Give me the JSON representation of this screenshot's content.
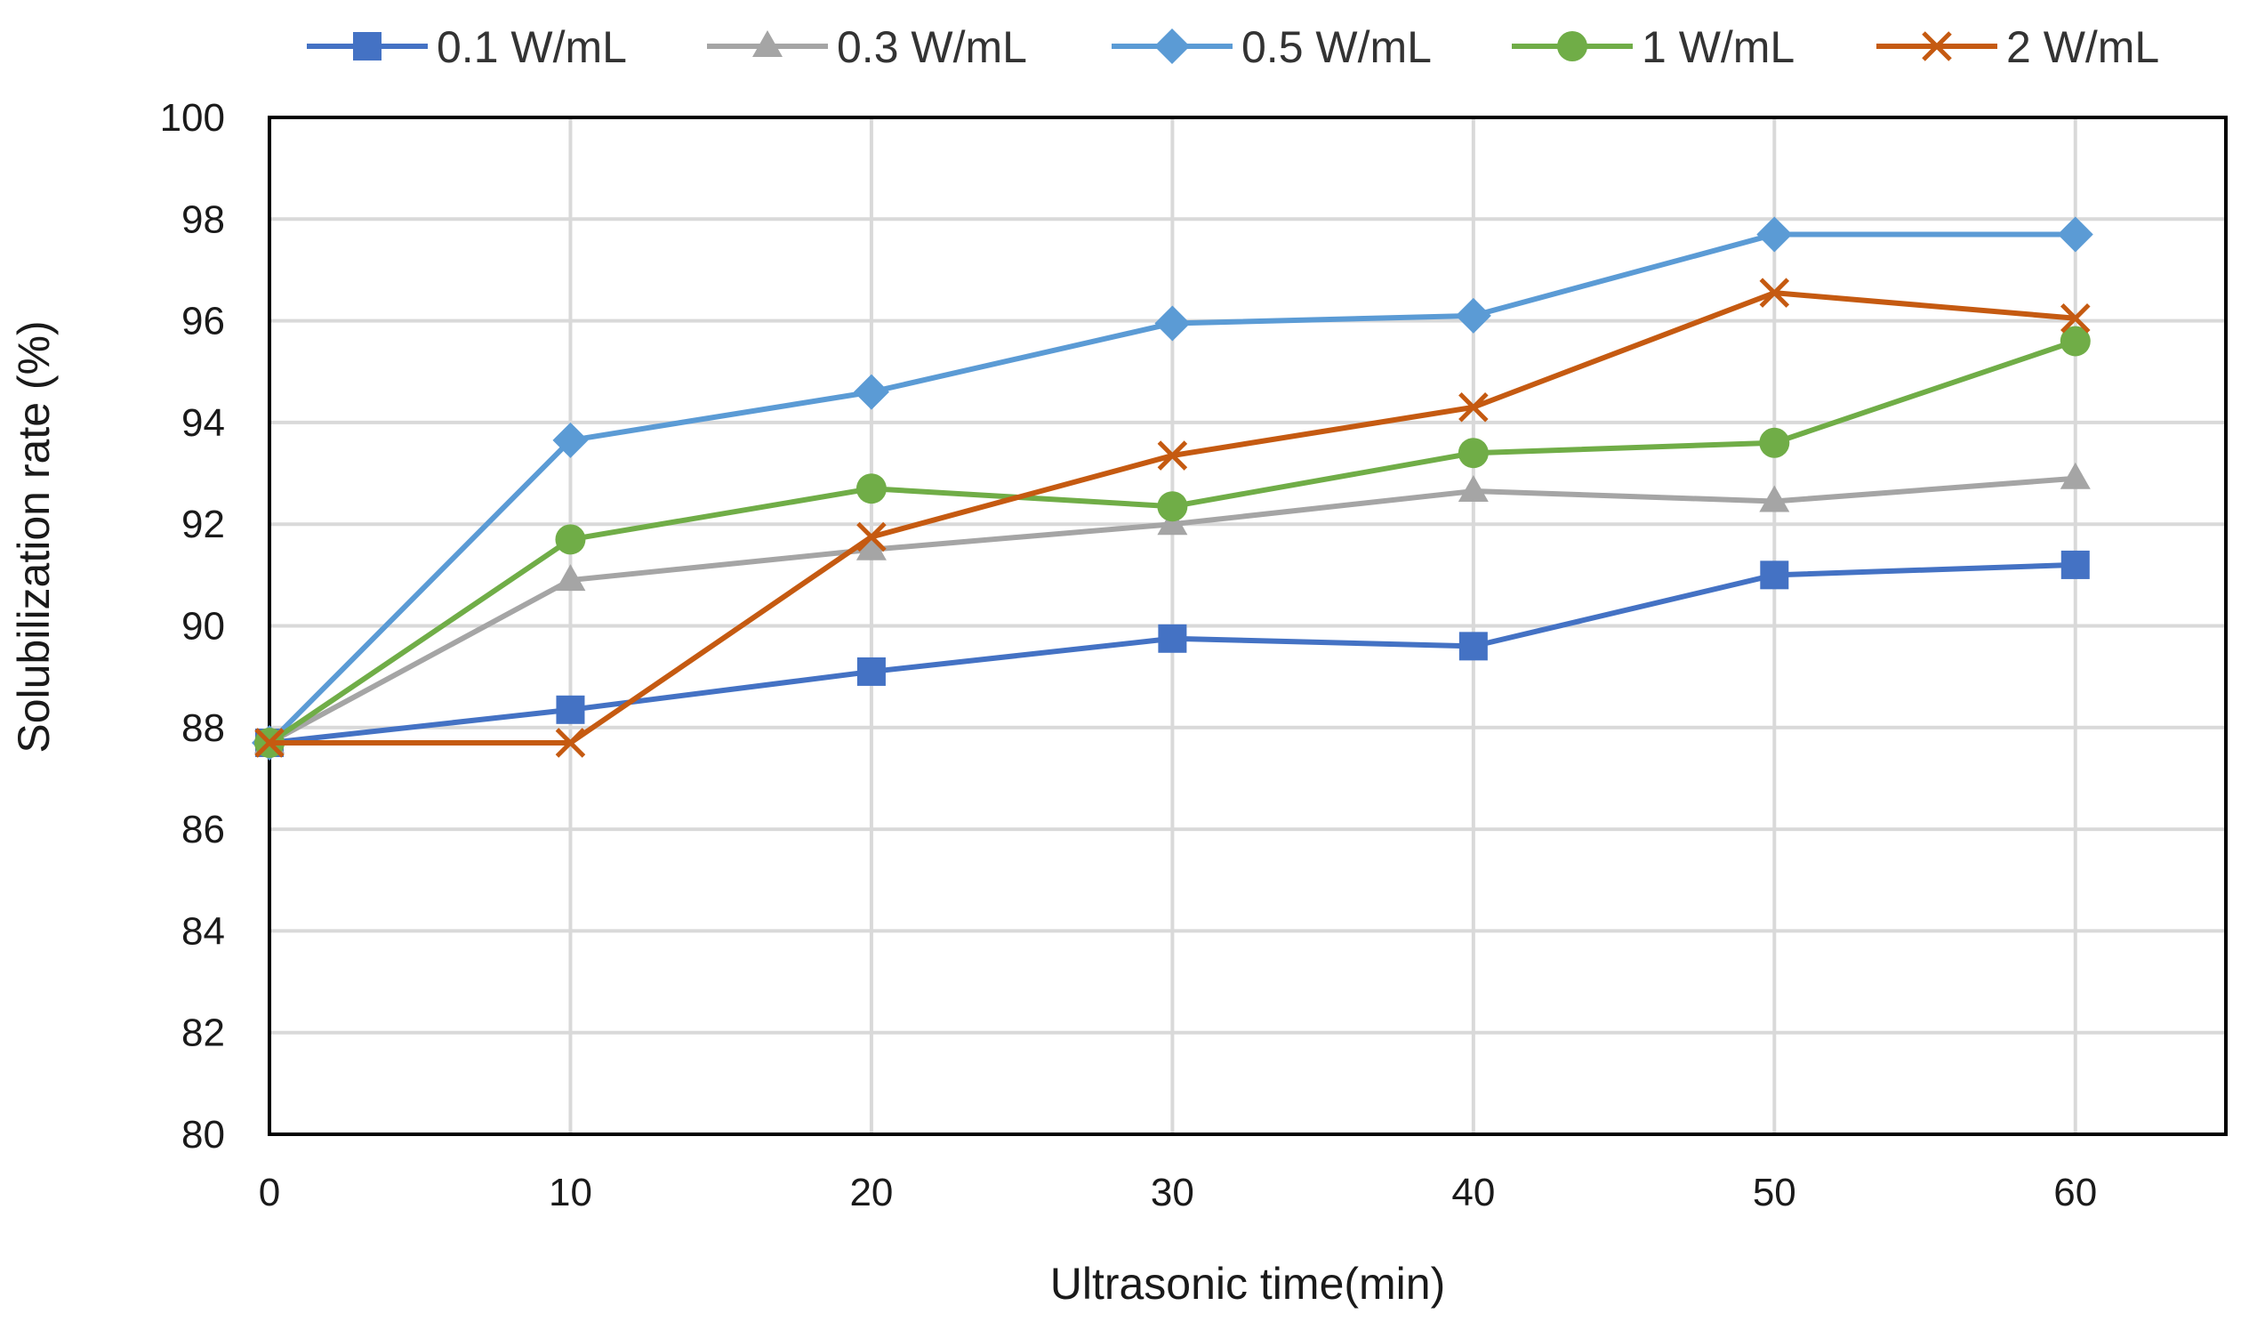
{
  "chart_data": {
    "type": "line",
    "title": "",
    "xlabel": "Ultrasonic time(min)",
    "ylabel": "Solubilization rate (%)",
    "x": [
      0,
      10,
      20,
      30,
      40,
      50,
      60
    ],
    "x_tick_labels": [
      "0",
      "10",
      "20",
      "30",
      "40",
      "50",
      "60"
    ],
    "y_tick_labels": [
      "80",
      "82",
      "84",
      "86",
      "88",
      "90",
      "92",
      "94",
      "96",
      "98",
      "100"
    ],
    "xlim": [
      0,
      65
    ],
    "ylim": [
      80,
      100
    ],
    "y_ticks": [
      80,
      82,
      84,
      86,
      88,
      90,
      92,
      94,
      96,
      98,
      100
    ],
    "grid": true,
    "legend_position": "top",
    "series": [
      {
        "name": "0.1 W/mL",
        "color": "#4472C4",
        "marker": "square",
        "values": [
          87.7,
          88.35,
          89.1,
          89.75,
          89.6,
          91.0,
          91.2
        ]
      },
      {
        "name": "0.3 W/mL",
        "color": "#A5A5A5",
        "marker": "triangle",
        "values": [
          87.7,
          90.9,
          91.5,
          92.0,
          92.65,
          92.45,
          92.9
        ]
      },
      {
        "name": "0.5 W/mL",
        "color": "#5B9BD5",
        "marker": "diamond",
        "values": [
          87.7,
          93.65,
          94.6,
          95.95,
          96.1,
          97.7,
          97.7
        ]
      },
      {
        "name": "1 W/mL",
        "color": "#70AD47",
        "marker": "circle",
        "values": [
          87.7,
          91.7,
          92.7,
          92.35,
          93.4,
          93.6,
          95.6
        ]
      },
      {
        "name": "2 W/mL",
        "color": "#C55A11",
        "marker": "x",
        "values": [
          87.7,
          87.7,
          91.75,
          93.35,
          94.3,
          96.55,
          96.05
        ]
      }
    ]
  }
}
